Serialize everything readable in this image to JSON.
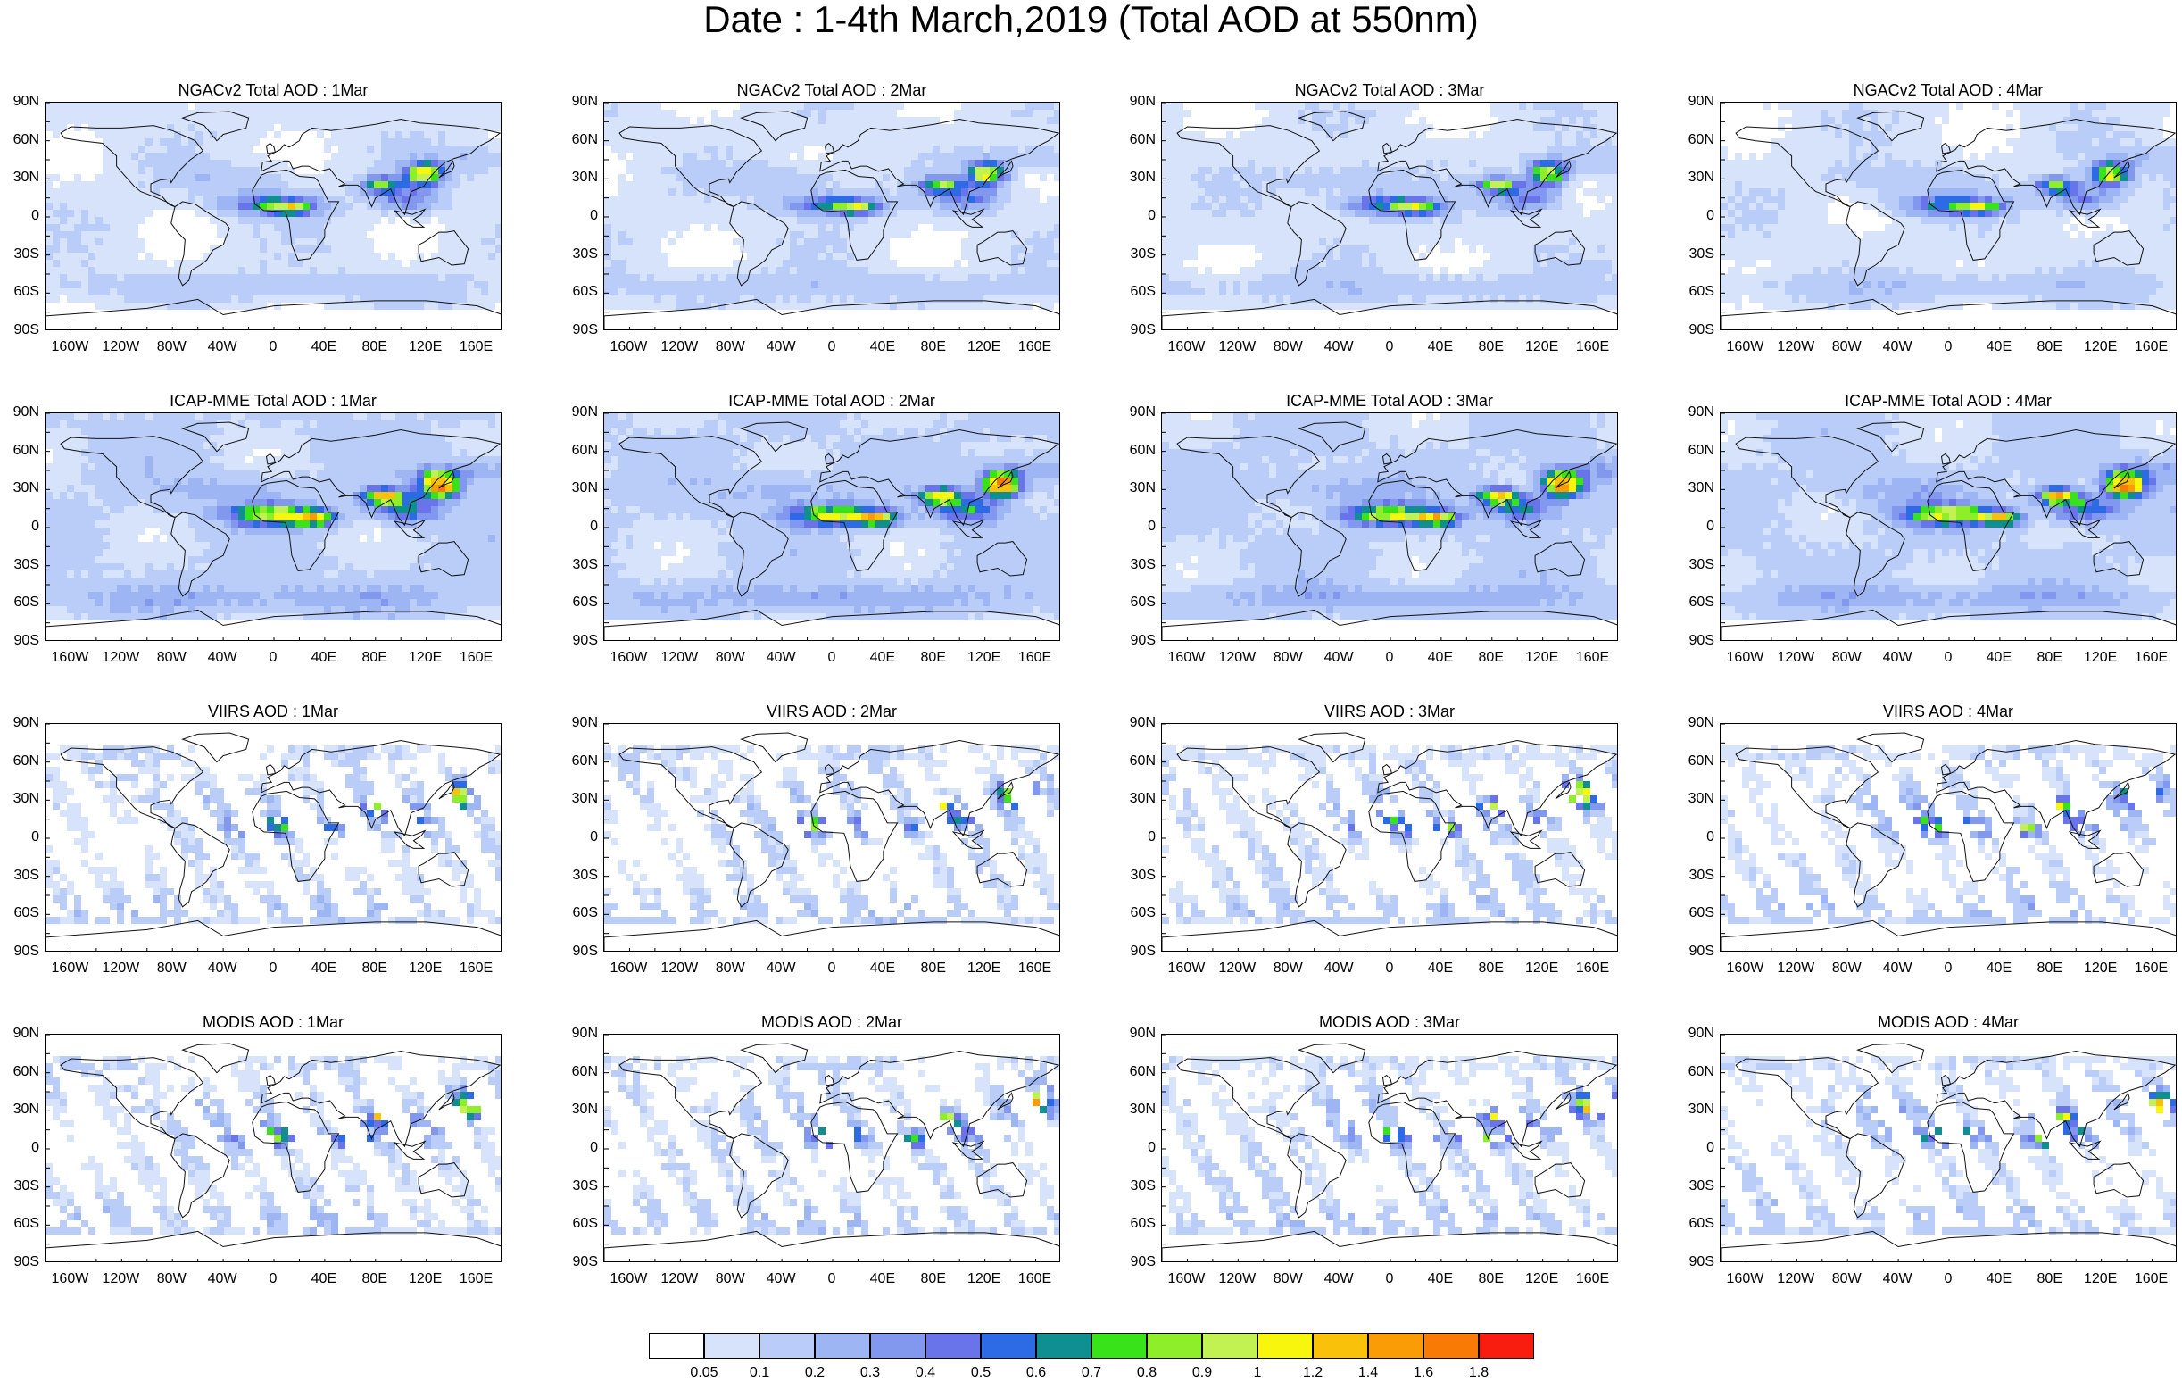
{
  "title": "Date : 1-4th March,2019 (Total AOD at 550nm)",
  "lat_labels": [
    "90N",
    "60N",
    "30N",
    "0",
    "30S",
    "60S",
    "90S"
  ],
  "lon_labels": [
    "160W",
    "120W",
    "80W",
    "40W",
    "0",
    "40E",
    "80E",
    "120E",
    "160E"
  ],
  "rows": [
    {
      "product": "NGACv2",
      "style": "model-smooth",
      "panels": [
        {
          "title": "NGACv2 Total AOD : 1Mar"
        },
        {
          "title": "NGACv2 Total AOD : 2Mar"
        },
        {
          "title": "NGACv2 Total AOD : 3Mar"
        },
        {
          "title": "NGACv2 Total AOD : 4Mar"
        }
      ]
    },
    {
      "product": "ICAP-MME",
      "style": "model-high",
      "panels": [
        {
          "title": "ICAP-MME Total AOD : 1Mar"
        },
        {
          "title": "ICAP-MME Total AOD : 2Mar"
        },
        {
          "title": "ICAP-MME Total AOD : 3Mar"
        },
        {
          "title": "ICAP-MME Total AOD : 4Mar"
        }
      ]
    },
    {
      "product": "VIIRS",
      "style": "satellite-swath",
      "panels": [
        {
          "title": "VIIRS AOD : 1Mar"
        },
        {
          "title": "VIIRS AOD : 2Mar"
        },
        {
          "title": "VIIRS AOD : 3Mar"
        },
        {
          "title": "VIIRS AOD : 4Mar"
        }
      ]
    },
    {
      "product": "MODIS",
      "style": "satellite-swath",
      "panels": [
        {
          "title": "MODIS AOD : 1Mar"
        },
        {
          "title": "MODIS AOD : 2Mar"
        },
        {
          "title": "MODIS AOD : 3Mar"
        },
        {
          "title": "MODIS AOD : 4Mar"
        }
      ]
    }
  ],
  "colorbar": {
    "colors": [
      "#ffffff",
      "#d7e3fb",
      "#b9cdf8",
      "#9db6f3",
      "#8298ef",
      "#6a74ea",
      "#2d6ae6",
      "#0f8f8f",
      "#39e31a",
      "#8fee2a",
      "#c2f252",
      "#f7f70e",
      "#f9c10a",
      "#f99c06",
      "#f97a04",
      "#f81d0f"
    ],
    "tick_labels": [
      "0.05",
      "0.1",
      "0.2",
      "0.3",
      "0.4",
      "0.5",
      "0.6",
      "0.7",
      "0.8",
      "0.9",
      "1",
      "1.2",
      "1.4",
      "1.6",
      "1.8"
    ]
  }
}
